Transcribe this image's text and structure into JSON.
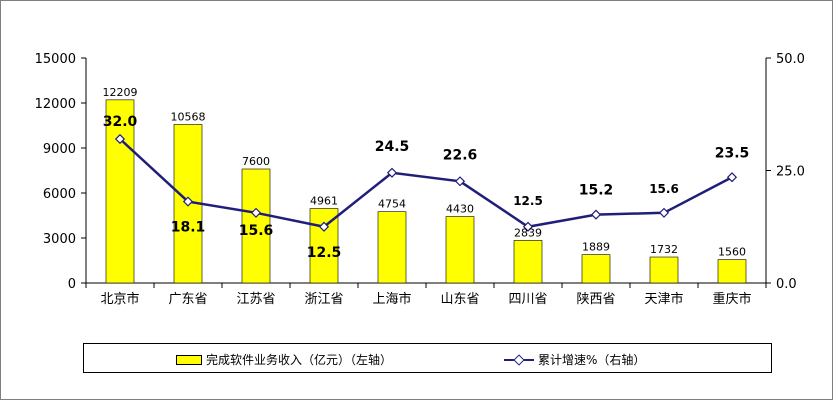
{
  "chart_data": {
    "type": "bar",
    "categories": [
      "北京市",
      "广东省",
      "江苏省",
      "浙江省",
      "上海市",
      "山东省",
      "四川省",
      "陕西省",
      "天津市",
      "重庆市"
    ],
    "series": [
      {
        "name": "完成软件业务收入（亿元）（左轴）",
        "type": "bar",
        "axis": "left",
        "values": [
          12209,
          10568,
          7600,
          4961,
          4754,
          4430,
          2839,
          1889,
          1732,
          1560
        ],
        "labels": [
          "12209",
          "10568",
          "7600",
          "4961",
          "4754",
          "4430",
          "2839",
          "1889",
          "1732",
          "1560"
        ],
        "color": "#ffff00"
      },
      {
        "name": "累计增速%（右轴）",
        "type": "line",
        "axis": "right",
        "values": [
          32.0,
          18.1,
          15.6,
          12.5,
          24.5,
          22.6,
          12.5,
          15.2,
          15.6,
          23.5
        ],
        "labels": [
          "32.0",
          "18.1",
          "15.6",
          "12.5",
          "24.5",
          "22.6",
          "12.5",
          "15.2",
          "15.6",
          "23.5"
        ],
        "color": "#1f1f7a"
      }
    ],
    "left_axis": {
      "ylim": [
        0,
        15000
      ],
      "ticks": [
        0,
        3000,
        6000,
        9000,
        12000,
        15000
      ],
      "tick_labels": [
        "0",
        "3000",
        "6000",
        "9000",
        "12000",
        "15000"
      ]
    },
    "right_axis": {
      "ylim": [
        0,
        50
      ],
      "ticks": [
        0,
        25,
        50
      ],
      "tick_labels": [
        "0.0",
        "25.0",
        "50.0"
      ]
    },
    "grid": false,
    "legend": "bottom"
  }
}
